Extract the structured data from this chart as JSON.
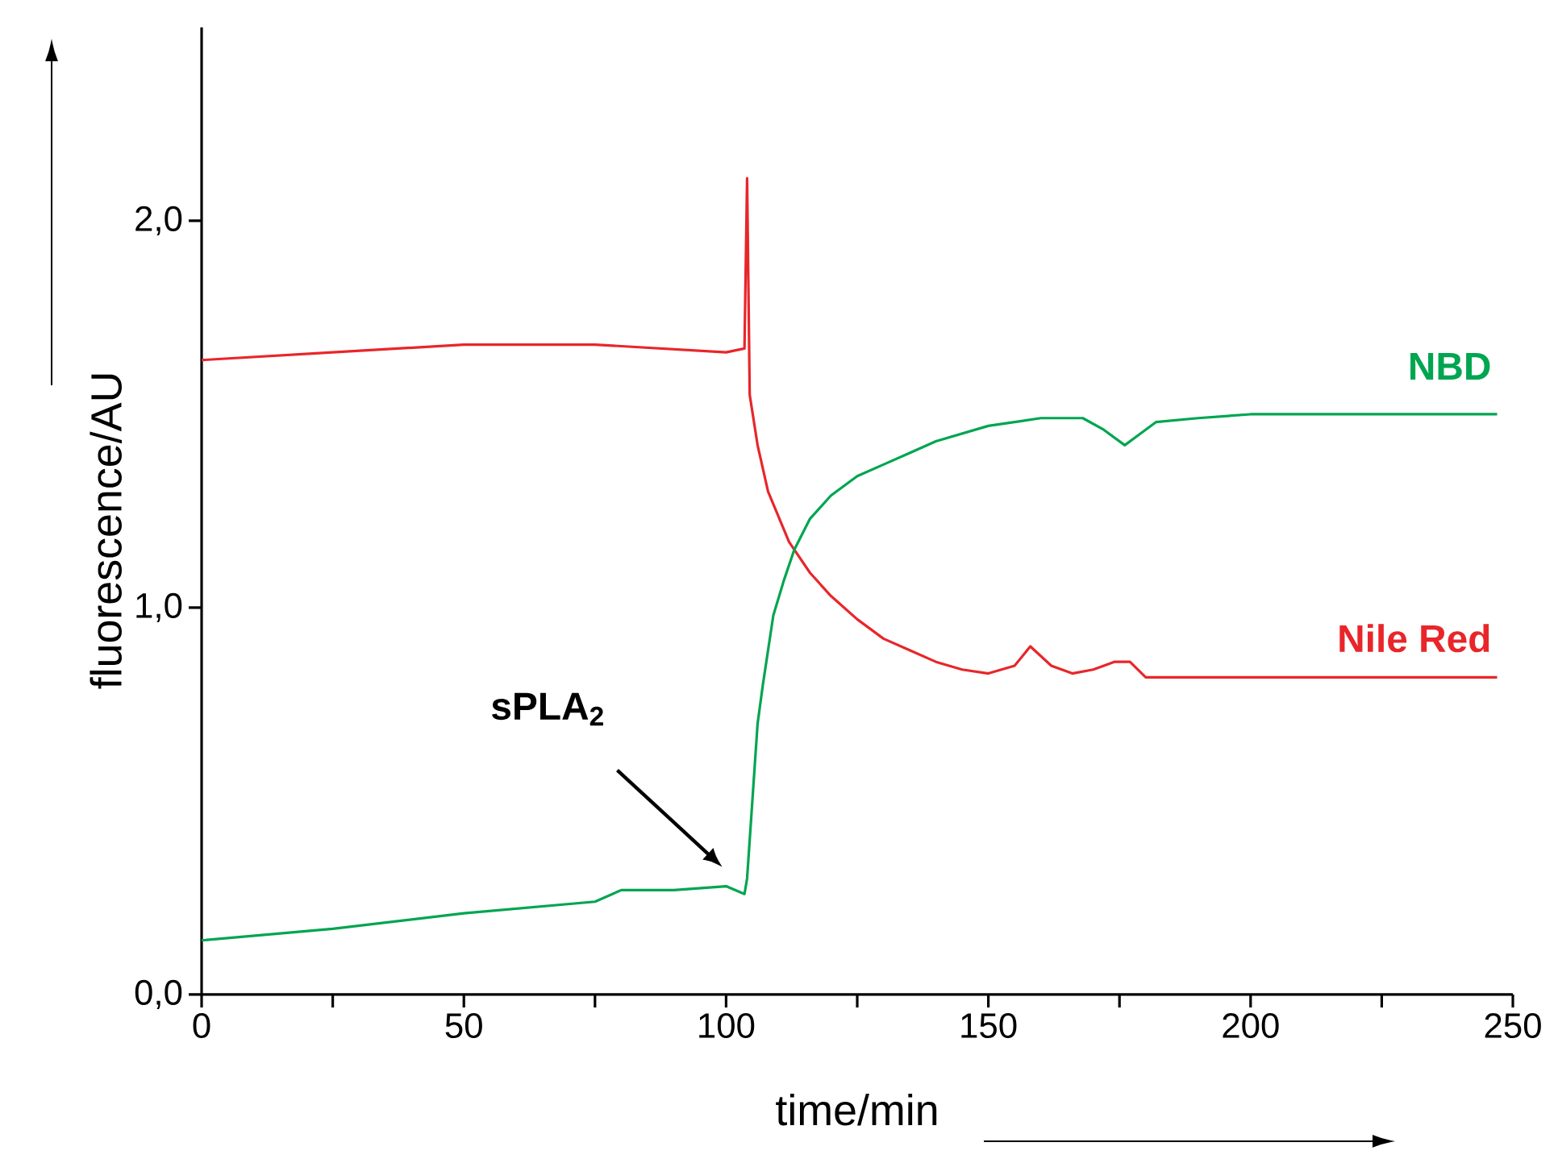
{
  "chart_data": {
    "type": "line",
    "xlabel": "time/min",
    "ylabel": "fluorescence/AU",
    "xlim": [
      0,
      250
    ],
    "ylim": [
      0,
      2.5
    ],
    "xticks": [
      0,
      {
        "value": 25,
        "label": null
      },
      50,
      {
        "value": 75,
        "label": null
      },
      100,
      {
        "value": 125,
        "label": null
      },
      150,
      {
        "value": 175,
        "label": null
      },
      200,
      {
        "value": 225,
        "label": null
      },
      250
    ],
    "yticks": [
      {
        "value": 0,
        "label": "0,0"
      },
      {
        "value": 1,
        "label": "1,0"
      },
      {
        "value": 2,
        "label": "2,0"
      }
    ],
    "series": [
      {
        "name": "Nile Red",
        "color": "#e8262a",
        "x": [
          0,
          25,
          50,
          75,
          100,
          103.5,
          104,
          104.5,
          106,
          108,
          112,
          116,
          120,
          125,
          130,
          135,
          140,
          145,
          150,
          155,
          158,
          162,
          166,
          170,
          174,
          177,
          180,
          190,
          200,
          220,
          247
        ],
        "values": [
          1.64,
          1.66,
          1.68,
          1.68,
          1.66,
          1.67,
          2.11,
          1.55,
          1.42,
          1.3,
          1.17,
          1.09,
          1.03,
          0.97,
          0.92,
          0.89,
          0.86,
          0.84,
          0.83,
          0.85,
          0.9,
          0.85,
          0.83,
          0.84,
          0.86,
          0.86,
          0.82,
          0.82,
          0.82,
          0.82,
          0.82
        ]
      },
      {
        "name": "NBD",
        "color": "#00a550",
        "x": [
          0,
          25,
          50,
          75,
          80,
          90,
          100,
          103.5,
          104,
          105,
          106,
          107,
          109,
          111,
          113,
          116,
          120,
          125,
          130,
          135,
          140,
          150,
          160,
          168,
          172,
          176,
          178,
          182,
          190,
          200,
          220,
          247
        ],
        "values": [
          0.14,
          0.17,
          0.21,
          0.24,
          0.27,
          0.27,
          0.28,
          0.26,
          0.3,
          0.5,
          0.7,
          0.8,
          0.98,
          1.07,
          1.15,
          1.23,
          1.29,
          1.34,
          1.37,
          1.4,
          1.43,
          1.47,
          1.49,
          1.49,
          1.46,
          1.42,
          1.44,
          1.48,
          1.49,
          1.5,
          1.5,
          1.5
        ]
      }
    ],
    "annotations": [
      "sPLA$_{2}$"
    ],
    "marker": "none",
    "line_style": "solid",
    "grid": false,
    "legend": false
  }
}
